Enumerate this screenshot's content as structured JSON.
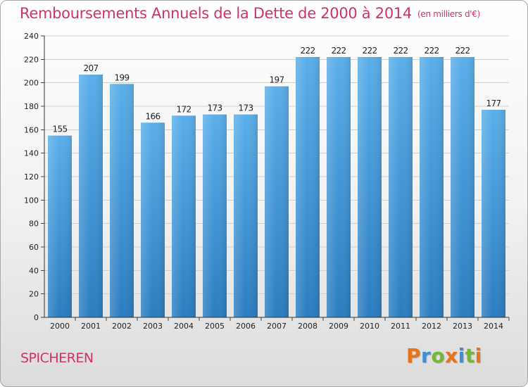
{
  "title": "Remboursements Annuels de la Dette de 2000 à 2014",
  "unit_note": "(en milliers d'€)",
  "commune": "SPICHEREN",
  "brand": {
    "letters": [
      "P",
      "r",
      "o",
      "x",
      "i",
      "t",
      "i"
    ],
    "colors": [
      "#e8731a",
      "#3f8fd2",
      "#74b736",
      "#e8731a",
      "#3f8fd2",
      "#74b736",
      "#e8731a"
    ]
  },
  "colors": {
    "bar_top": "#5aaeea",
    "bar_bottom": "#2a7cc0",
    "title": "#d0306e",
    "grid": "#cfcfcf"
  },
  "chart_data": {
    "type": "bar",
    "title": "Remboursements Annuels de la Dette de 2000 à 2014",
    "xlabel": "",
    "ylabel": "(en milliers d'€)",
    "categories": [
      "2000",
      "2001",
      "2002",
      "2003",
      "2004",
      "2005",
      "2006",
      "2007",
      "2008",
      "2009",
      "2010",
      "2011",
      "2012",
      "2013",
      "2014"
    ],
    "values": [
      155,
      207,
      199,
      166,
      172,
      173,
      173,
      197,
      222,
      222,
      222,
      222,
      222,
      222,
      177
    ],
    "ylim": [
      0,
      240
    ],
    "yticks": [
      0,
      20,
      40,
      60,
      80,
      100,
      120,
      140,
      160,
      180,
      200,
      220,
      240
    ],
    "grid": true,
    "legend": "none"
  }
}
